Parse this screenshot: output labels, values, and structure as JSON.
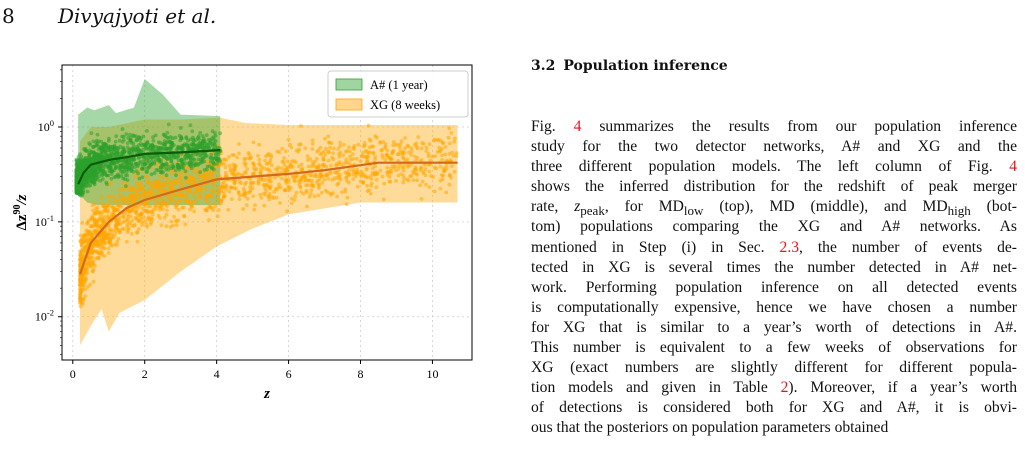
{
  "page_header": {
    "page_number": "8",
    "running_head": "Divyajyoti et al."
  },
  "section": {
    "number": "3.2",
    "title": "Population inference"
  },
  "body_lines": [
    "Fig. <span class=\"ref\">4</span> summarizes the results from our population inference",
    "study for the two detector networks, A# and XG and the",
    "three different population models. The left column of Fig. <span class=\"ref\">4</span>",
    "shows the inferred distribution for the redshift of peak merger",
    "rate, <i>z</i><sub>peak</sub>, for MD<sub>low</sub> (top), MD (middle), and MD<sub>high</sub> (bot-",
    "tom) populations comparing the XG and A# networks. As",
    "mentioned in Step (i) in Sec. <span class=\"ref\">2.3</span>, the number of events de-",
    "tected in XG is several times the number detected in A# net-",
    "work. Performing population inference on all detected events",
    "is computationally expensive, hence we have chosen a number",
    "for XG that is similar to a year’s worth of detections in A#.",
    "This number is equivalent to a few weeks of observations for",
    "XG (exact numbers are slightly different for different popula-",
    "tion models and given in Table <span class=\"ref\">2</span>). Moreover, if a year’s worth",
    "of detections is considered both for XG and A#, it is obvi-",
    "ous that the posteriors on population parameters obtained"
  ],
  "chart_data": {
    "type": "scatter",
    "x_scale": "linear",
    "y_scale": "log",
    "xlim": [
      -0.3,
      11.1
    ],
    "ylim": [
      0.0035,
      4.5
    ],
    "xlabel": "z",
    "ylabel": "Δz^90/z",
    "xticks": [
      0,
      2,
      4,
      6,
      8,
      10
    ],
    "yticks": [
      {
        "value": 0.01,
        "label": "10^-2"
      },
      {
        "value": 0.1,
        "label": "10^-1"
      },
      {
        "value": 1,
        "label": "10^0"
      }
    ],
    "grid": true,
    "legend_position": "upper right",
    "series": [
      {
        "name": "A# (1 year)",
        "color": "#2ca02c",
        "median_line_color": "#0d5c0d",
        "median": [
          [
            0.15,
            0.25
          ],
          [
            0.3,
            0.33
          ],
          [
            0.5,
            0.4
          ],
          [
            1.0,
            0.45
          ],
          [
            1.5,
            0.48
          ],
          [
            2.0,
            0.52
          ],
          [
            3.0,
            0.54
          ],
          [
            4.1,
            0.57
          ]
        ],
        "band_upper": [
          [
            0.15,
            1.35
          ],
          [
            0.4,
            1.6
          ],
          [
            0.6,
            1.5
          ],
          [
            1.0,
            1.7
          ],
          [
            1.2,
            1.4
          ],
          [
            1.7,
            1.6
          ],
          [
            2.0,
            3.2
          ],
          [
            2.5,
            2.2
          ],
          [
            3.0,
            1.35
          ],
          [
            4.1,
            1.3
          ]
        ],
        "band_lower": [
          [
            0.15,
            0.2
          ],
          [
            0.4,
            0.16
          ],
          [
            0.7,
            0.15
          ],
          [
            1.5,
            0.15
          ],
          [
            2.5,
            0.15
          ],
          [
            4.1,
            0.15
          ]
        ],
        "points_x_range": [
          0.1,
          4.1
        ],
        "points_y_range": [
          0.15,
          1.8
        ]
      },
      {
        "name": "XG (8 weeks)",
        "color": "#ffa500",
        "median_line_color": "#d2691e",
        "median": [
          [
            0.2,
            0.028
          ],
          [
            0.5,
            0.06
          ],
          [
            1.0,
            0.1
          ],
          [
            1.5,
            0.14
          ],
          [
            2.0,
            0.17
          ],
          [
            3.0,
            0.22
          ],
          [
            4.0,
            0.28
          ],
          [
            5.0,
            0.3
          ],
          [
            6.0,
            0.32
          ],
          [
            7.0,
            0.35
          ],
          [
            8.5,
            0.42
          ],
          [
            10.7,
            0.42
          ]
        ],
        "band_upper": [
          [
            0.2,
            0.7
          ],
          [
            0.5,
            1.0
          ],
          [
            1.0,
            1.0
          ],
          [
            2.0,
            1.2
          ],
          [
            3.0,
            1.2
          ],
          [
            4.1,
            1.25
          ],
          [
            4.8,
            1.1
          ],
          [
            6.0,
            1.05
          ],
          [
            8.0,
            1.05
          ],
          [
            10.7,
            1.05
          ]
        ],
        "band_lower": [
          [
            0.2,
            0.005
          ],
          [
            0.5,
            0.008
          ],
          [
            0.8,
            0.012
          ],
          [
            1.0,
            0.007
          ],
          [
            1.3,
            0.011
          ],
          [
            2.0,
            0.015
          ],
          [
            3.0,
            0.03
          ],
          [
            4.0,
            0.055
          ],
          [
            5.0,
            0.085
          ],
          [
            6.0,
            0.12
          ],
          [
            8.0,
            0.16
          ],
          [
            10.7,
            0.16
          ]
        ],
        "points_x_range": [
          0.2,
          10.7
        ],
        "points_y_range": [
          0.005,
          1.0
        ]
      }
    ]
  }
}
